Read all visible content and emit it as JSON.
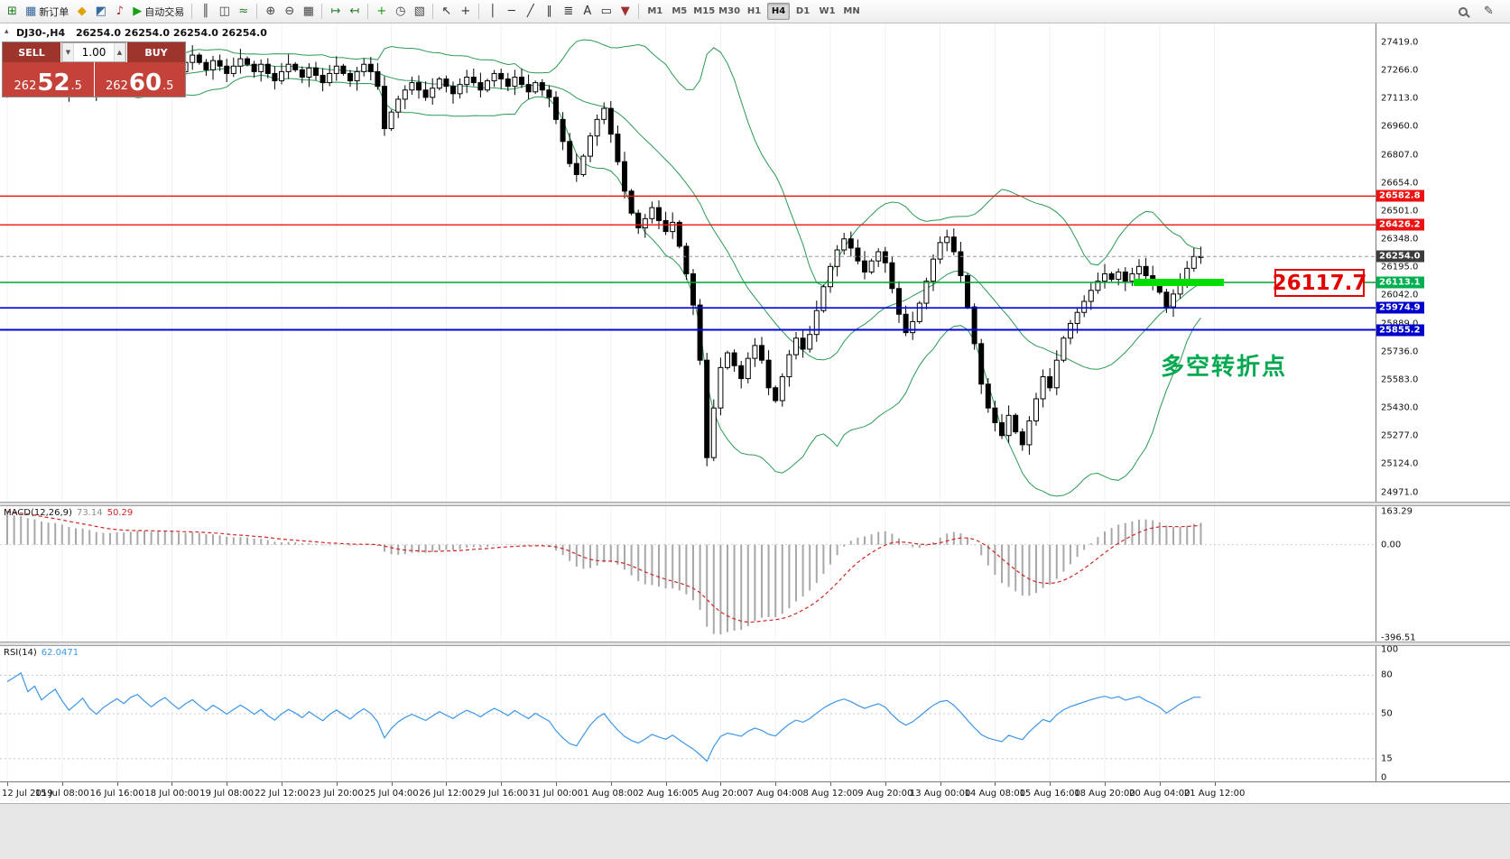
{
  "toolbar": {
    "items": [
      {
        "name": "new-chart",
        "glyph": "⊞",
        "color": "#1a7a1a"
      },
      {
        "name": "new-order",
        "glyph": "▦",
        "color": "#336699",
        "label": "新订单"
      },
      {
        "name": "metaeditor",
        "glyph": "◆",
        "color": "#e0a000"
      },
      {
        "name": "market-watch",
        "glyph": "◩",
        "color": "#356a9a"
      },
      {
        "name": "alerts",
        "glyph": "♪",
        "color": "#b03030"
      },
      {
        "name": "autotrading",
        "glyph": "▶",
        "color": "#18a018",
        "label": "自动交易"
      },
      {
        "sep": true
      },
      {
        "name": "chart-bars",
        "glyph": "║",
        "color": "#444"
      },
      {
        "name": "chart-candles",
        "glyph": "◫",
        "color": "#444"
      },
      {
        "name": "chart-line",
        "glyph": "≈",
        "color": "#2a7a2a"
      },
      {
        "sep": true
      },
      {
        "name": "zoom-in",
        "glyph": "⊕",
        "color": "#444"
      },
      {
        "name": "zoom-out",
        "glyph": "⊖",
        "color": "#444"
      },
      {
        "name": "tile-windows",
        "glyph": "▦",
        "color": "#444"
      },
      {
        "sep": true
      },
      {
        "name": "auto-scroll",
        "glyph": "↦",
        "color": "#2a7a2a"
      },
      {
        "name": "chart-shift",
        "glyph": "↤",
        "color": "#2a7a2a"
      },
      {
        "sep": true
      },
      {
        "name": "indicators",
        "glyph": "+",
        "color": "#18a018"
      },
      {
        "name": "periods",
        "glyph": "◷",
        "color": "#444"
      },
      {
        "name": "templates",
        "glyph": "▧",
        "color": "#444"
      },
      {
        "sep": true
      },
      {
        "name": "cursor",
        "glyph": "↖",
        "color": "#333"
      },
      {
        "name": "crosshair",
        "glyph": "+",
        "color": "#333"
      },
      {
        "sep": true
      },
      {
        "name": "vertical-line",
        "glyph": "│",
        "color": "#333"
      },
      {
        "name": "horizontal-line",
        "glyph": "─",
        "color": "#333"
      },
      {
        "name": "trendline",
        "glyph": "╱",
        "color": "#333"
      },
      {
        "name": "channel",
        "glyph": "∥",
        "color": "#333"
      },
      {
        "name": "fibonacci",
        "glyph": "≣",
        "color": "#333"
      },
      {
        "name": "text",
        "glyph": "A",
        "color": "#333"
      },
      {
        "name": "text-label",
        "glyph": "▭",
        "color": "#333"
      },
      {
        "name": "arrows",
        "glyph": "▼",
        "color": "#a03030"
      },
      {
        "sep": true
      }
    ],
    "timeframes": [
      "M1",
      "M5",
      "M15",
      "M30",
      "H1",
      "H4",
      "D1",
      "W1",
      "MN"
    ],
    "active_timeframe": "H4"
  },
  "chart": {
    "symbol_header": "DJ30-,H4",
    "ohlc": "26254.0 26254.0 26254.0 26254.0",
    "annotation_price": "26117.7",
    "annotation_text": "多空转折点"
  },
  "trade_panel": {
    "sell_label": "SELL",
    "buy_label": "BUY",
    "volume": "1.00",
    "sell_price": {
      "head": "262",
      "big": "52",
      "tail": ".5"
    },
    "buy_price": {
      "head": "262",
      "big": "60",
      "tail": ".5"
    }
  },
  "price_axis": {
    "ticks": [
      "27419.0",
      "27266.0",
      "27113.0",
      "26960.0",
      "26807.0",
      "26654.0",
      "26501.0",
      "26348.0",
      "26195.0",
      "26042.0",
      "25889.0",
      "25736.0",
      "25583.0",
      "25430.0",
      "25277.0",
      "25124.0",
      "24971.0"
    ]
  },
  "levels": [
    {
      "price": 26582.8,
      "label": "26582.8",
      "color": "#ee1111",
      "tag_color": "#ee1111",
      "width": 1.4
    },
    {
      "price": 26426.2,
      "label": "26426.2",
      "color": "#ee1111",
      "tag_color": "#ee1111",
      "width": 1.4
    },
    {
      "price": 26254.0,
      "label": "26254.0",
      "color": "#999999",
      "tag_color": "#3c3c3c",
      "width": 1,
      "dash": "4 3"
    },
    {
      "price": 26113.1,
      "label": "26113.1",
      "color": "#00a22e",
      "tag_color": "#00b050",
      "width": 1.6,
      "highlight": [
        1256,
        1356
      ]
    },
    {
      "price": 25974.9,
      "label": "25974.9",
      "color": "#0000dd",
      "tag_color": "#0000cc",
      "width": 1.6
    },
    {
      "price": 25855.2,
      "label": "25855.2",
      "color": "#0000dd",
      "tag_color": "#0000cc",
      "width": 2
    }
  ],
  "indicators": {
    "macd": {
      "label": "MACD(12,26,9)",
      "value1": "73.14",
      "value2": "50.29",
      "axis": [
        "163.29",
        "0.00",
        "-396.51"
      ]
    },
    "rsi": {
      "label": "RSI(14)",
      "value": "62.0471",
      "axis": [
        "100",
        "80",
        "50",
        "15",
        "0"
      ],
      "levels": [
        80,
        50,
        15
      ]
    }
  },
  "time_axis": [
    "12 Jul 2019",
    "15 Jul 08:00",
    "16 Jul 16:00",
    "18 Jul 00:00",
    "19 Jul 08:00",
    "22 Jul 12:00",
    "23 Jul 20:00",
    "25 Jul 04:00",
    "26 Jul 12:00",
    "29 Jul 16:00",
    "31 Jul 00:00",
    "1 Aug 08:00",
    "2 Aug 16:00",
    "5 Aug 20:00",
    "7 Aug 04:00",
    "8 Aug 12:00",
    "9 Aug 20:00",
    "13 Aug 00:00",
    "14 Aug 08:00",
    "15 Aug 16:00",
    "18 Aug 20:00",
    "20 Aug 04:00",
    "21 Aug 12:00"
  ],
  "chart_data": {
    "type": "candlestick",
    "symbol": "DJ30-",
    "timeframe": "H4",
    "price_range": [
      24971.0,
      27419.0
    ],
    "bid": 26254.0,
    "key_levels": {
      "resistance": [
        26582.8,
        26426.2
      ],
      "pivot": 26113.1,
      "support": [
        25974.9,
        25855.2
      ]
    },
    "closes": [
      27160,
      27190,
      27230,
      27180,
      27220,
      27170,
      27210,
      27250,
      27200,
      27150,
      27190,
      27240,
      27180,
      27140,
      27190,
      27230,
      27270,
      27240,
      27300,
      27330,
      27290,
      27250,
      27300,
      27340,
      27300,
      27260,
      27310,
      27350,
      27310,
      27270,
      27320,
      27290,
      27250,
      27290,
      27330,
      27300,
      27260,
      27300,
      27250,
      27210,
      27260,
      27300,
      27270,
      27230,
      27280,
      27240,
      27200,
      27250,
      27290,
      27250,
      27210,
      27260,
      27300,
      27260,
      27180,
      26950,
      27040,
      27110,
      27160,
      27200,
      27160,
      27120,
      27170,
      27220,
      27180,
      27140,
      27190,
      27230,
      27200,
      27160,
      27210,
      27250,
      27220,
      27180,
      27230,
      27190,
      27150,
      27200,
      27160,
      27120,
      27000,
      26880,
      26760,
      26700,
      26800,
      26910,
      27000,
      27060,
      26920,
      26770,
      26610,
      26490,
      26410,
      26460,
      26520,
      26450,
      26390,
      26440,
      26310,
      26160,
      25990,
      25690,
      25160,
      25430,
      25650,
      25730,
      25660,
      25590,
      25700,
      25770,
      25690,
      25540,
      25470,
      25600,
      25720,
      25810,
      25750,
      25830,
      25960,
      26090,
      26200,
      26290,
      26350,
      26300,
      26230,
      26170,
      26230,
      26280,
      26220,
      26080,
      25940,
      25840,
      25900,
      26000,
      26120,
      26240,
      26330,
      26360,
      26280,
      26150,
      25980,
      25780,
      25560,
      25430,
      25350,
      25280,
      25390,
      25300,
      25230,
      25360,
      25480,
      25600,
      25540,
      25690,
      25810,
      25890,
      25950,
      26010,
      26070,
      26120,
      26160,
      26130,
      26170,
      26120,
      26160,
      26200,
      26150,
      26110,
      26060,
      25980,
      26050,
      26130,
      26190,
      26254,
      26254
    ]
  }
}
